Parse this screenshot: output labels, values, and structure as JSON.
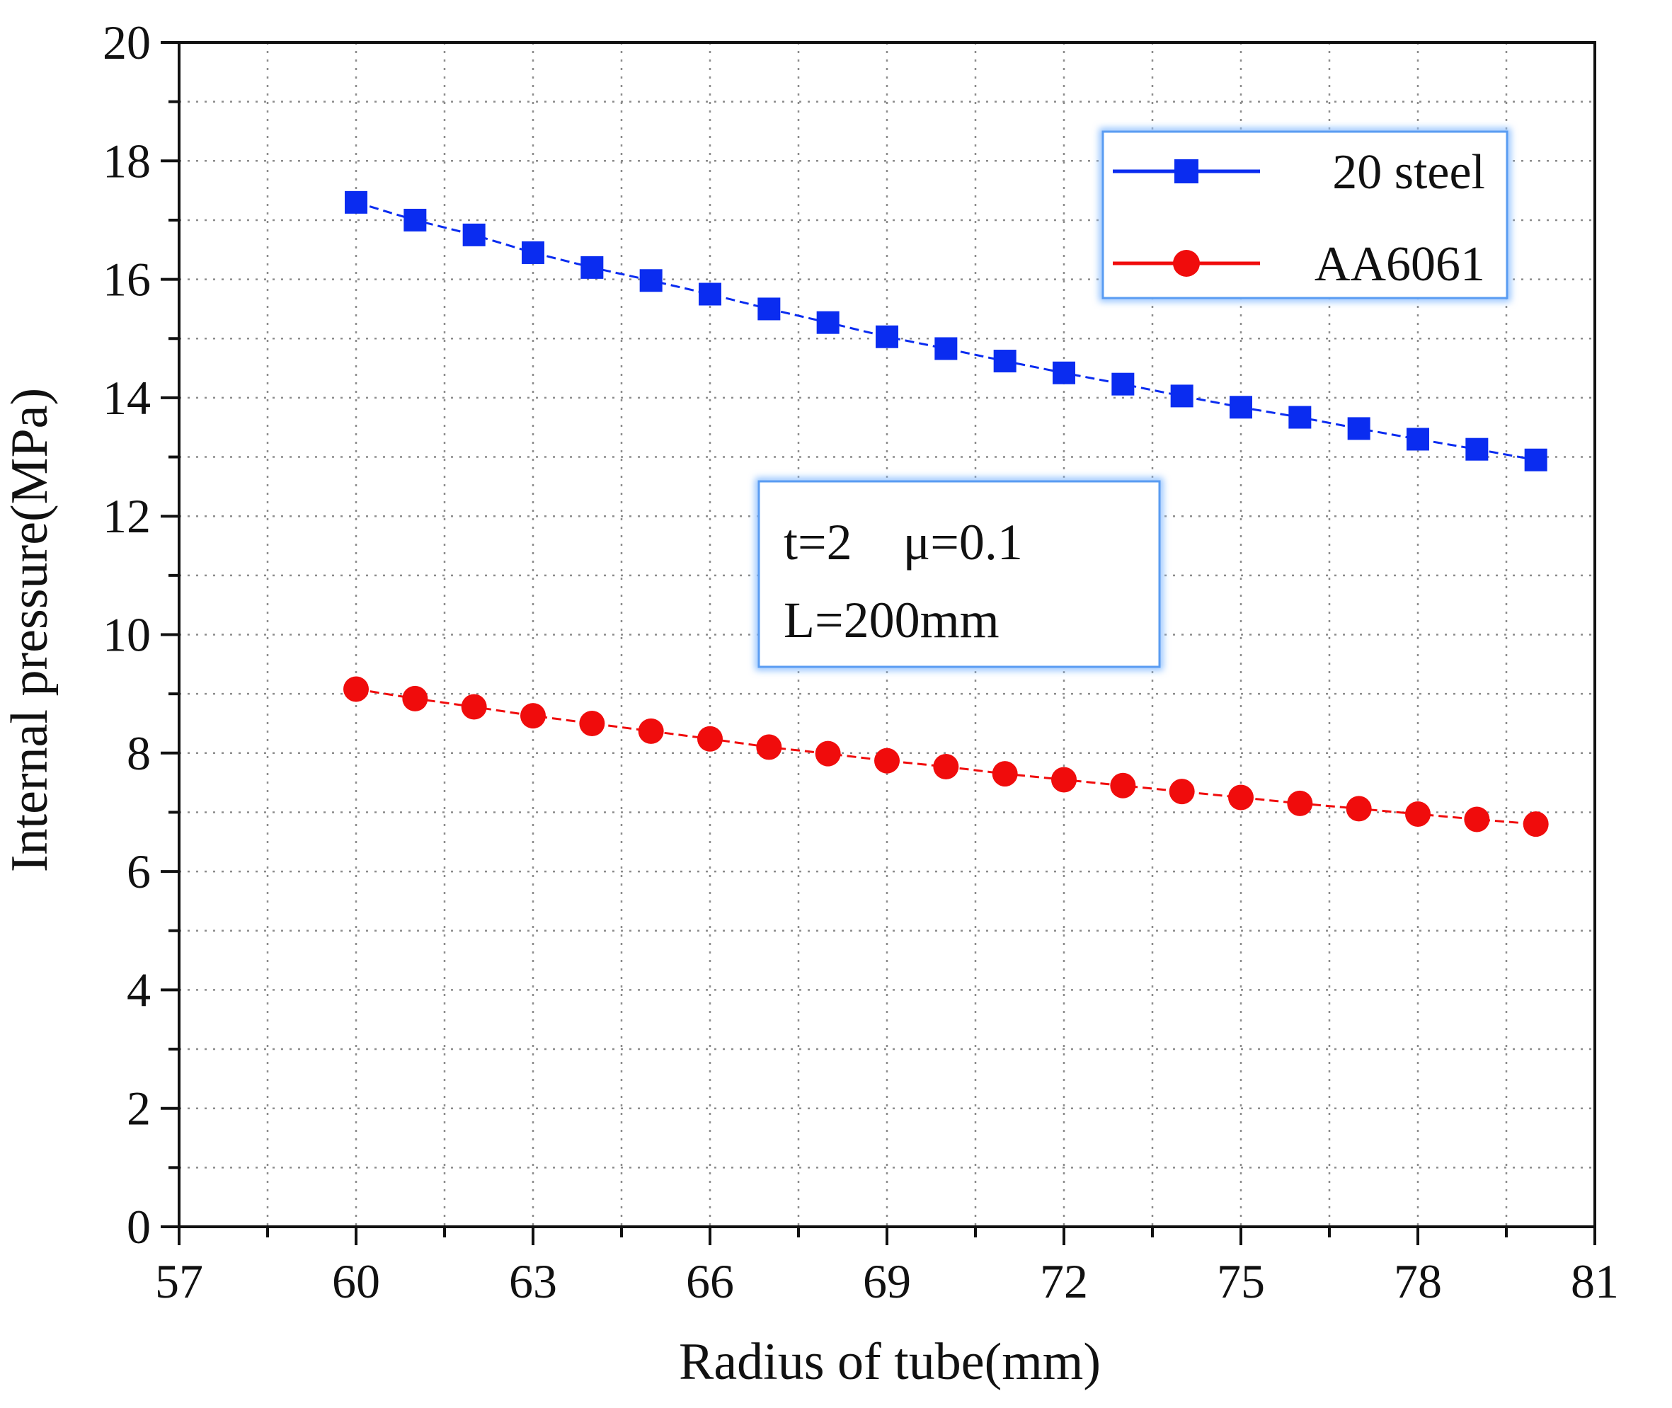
{
  "chart_data": {
    "type": "line",
    "title": "",
    "xlabel": "Radius of tube(mm)",
    "ylabel": "Internal pressure(MPa)",
    "xlim": [
      57,
      81
    ],
    "ylim": [
      0,
      20
    ],
    "xticks": [
      57,
      60,
      63,
      66,
      69,
      72,
      75,
      78,
      81
    ],
    "yticks": [
      0,
      2,
      4,
      6,
      8,
      10,
      12,
      14,
      16,
      18,
      20
    ],
    "x_tick_labels": [
      "57",
      "60",
      "63",
      "66",
      "69",
      "72",
      "75",
      "78",
      "81"
    ],
    "y_tick_labels": [
      "0",
      "2",
      "4",
      "6",
      "8",
      "10",
      "12",
      "14",
      "16",
      "18",
      "20"
    ],
    "grid": true,
    "legend_position": "top-right",
    "x": [
      60,
      61,
      62,
      63,
      64,
      65,
      66,
      67,
      68,
      69,
      70,
      71,
      72,
      73,
      74,
      75,
      76,
      77,
      78,
      79,
      80
    ],
    "series": [
      {
        "name": "20 steel",
        "color": "#0a2cf0",
        "marker": "square",
        "values": [
          17.3,
          17.0,
          16.75,
          16.45,
          16.2,
          15.98,
          15.75,
          15.5,
          15.27,
          15.03,
          14.83,
          14.62,
          14.42,
          14.23,
          14.03,
          13.84,
          13.67,
          13.48,
          13.3,
          13.13,
          12.95
        ]
      },
      {
        "name": "AA6061",
        "color": "#f00c0c",
        "marker": "circle",
        "values": [
          9.08,
          8.92,
          8.78,
          8.63,
          8.5,
          8.37,
          8.24,
          8.1,
          7.99,
          7.87,
          7.77,
          7.65,
          7.55,
          7.45,
          7.35,
          7.25,
          7.15,
          7.06,
          6.97,
          6.88,
          6.8
        ]
      }
    ],
    "annotation": {
      "line1": "t=2    μ=0.1",
      "line2": "L=200mm"
    }
  }
}
